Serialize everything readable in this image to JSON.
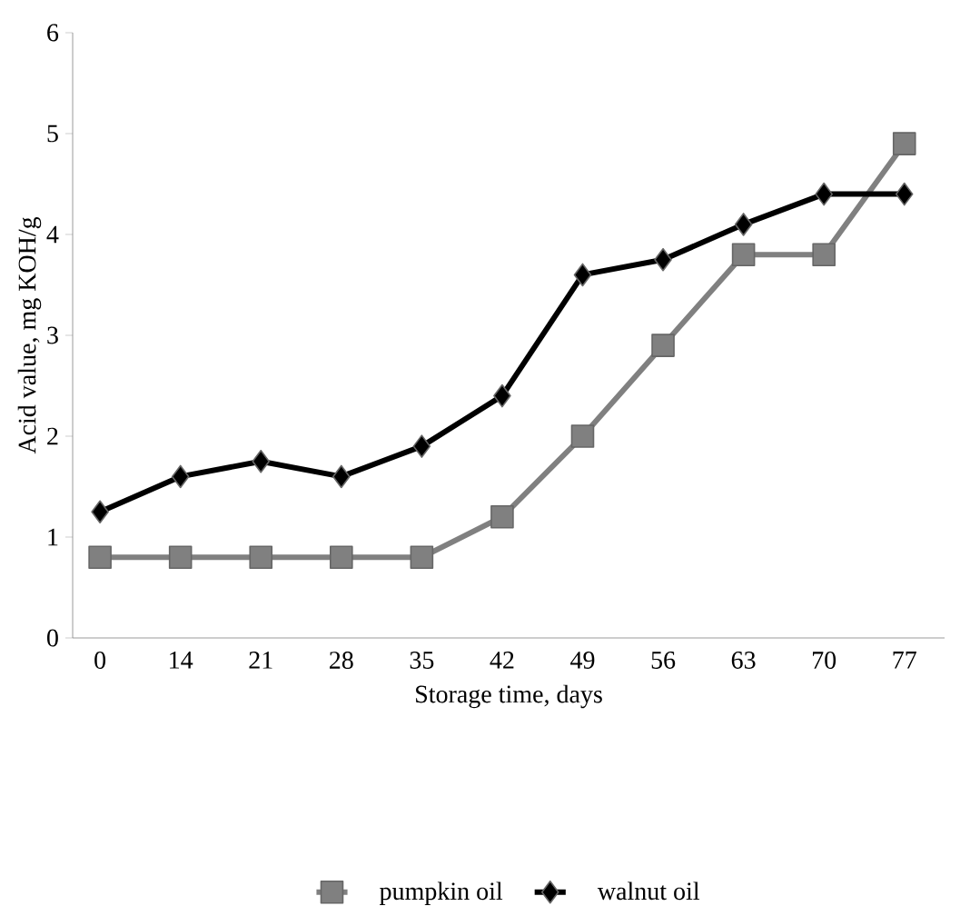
{
  "chart_data": {
    "type": "line",
    "xlabel": "Storage time, days",
    "ylabel": "Acid value, mg KOH/g",
    "categories": [
      "0",
      "14",
      "21",
      "28",
      "35",
      "42",
      "49",
      "56",
      "63",
      "70",
      "77"
    ],
    "series": [
      {
        "name": "pumpkin oil",
        "color": "#808080",
        "marker": "square",
        "values": [
          0.8,
          0.8,
          0.8,
          0.8,
          0.8,
          1.2,
          2.0,
          2.9,
          3.8,
          3.8,
          4.9
        ]
      },
      {
        "name": "walnut oil",
        "color": "#000000",
        "marker": "diamond",
        "values": [
          1.25,
          1.6,
          1.75,
          1.6,
          1.9,
          2.4,
          3.6,
          3.75,
          4.1,
          4.4,
          4.4
        ]
      }
    ],
    "ylim": [
      0,
      6
    ],
    "yticks": [
      0,
      1,
      2,
      3,
      4,
      5,
      6
    ],
    "grid": false,
    "legend": "bottom",
    "line_style": "solid"
  }
}
